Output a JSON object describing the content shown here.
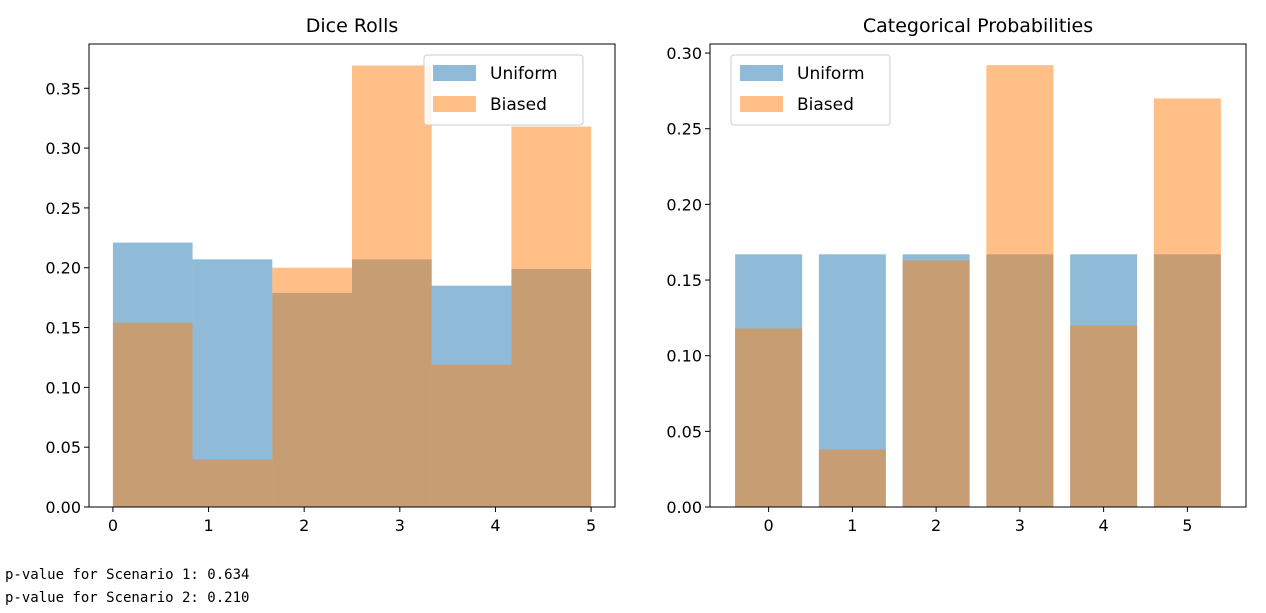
{
  "chart_data": [
    {
      "type": "bar",
      "title": "Dice Rolls",
      "xlabel": "",
      "ylabel": "",
      "xlim": [
        -0.25,
        5.25
      ],
      "ylim": [
        0,
        0.387
      ],
      "grid": false,
      "legend_position": "top-right",
      "xticks": [
        "0",
        "1",
        "2",
        "3",
        "4",
        "5"
      ],
      "yticks": [
        "0.00",
        "0.05",
        "0.10",
        "0.15",
        "0.20",
        "0.25",
        "0.30",
        "0.35"
      ],
      "bin_edges": [
        0,
        0.833,
        1.667,
        2.5,
        3.333,
        4.167,
        5
      ],
      "series": [
        {
          "name": "Uniform",
          "color": "#1f77b4",
          "alpha": 0.5,
          "values": [
            0.221,
            0.207,
            0.179,
            0.207,
            0.185,
            0.199
          ]
        },
        {
          "name": "Biased",
          "color": "#ff7f0e",
          "alpha": 0.5,
          "values": [
            0.154,
            0.04,
            0.2,
            0.369,
            0.119,
            0.318
          ]
        }
      ]
    },
    {
      "type": "bar",
      "title": "Categorical Probabilities",
      "xlabel": "",
      "ylabel": "",
      "xlim": [
        -0.7,
        5.7
      ],
      "ylim": [
        0,
        0.306
      ],
      "grid": false,
      "legend_position": "top-left",
      "categories": [
        "0",
        "1",
        "2",
        "3",
        "4",
        "5"
      ],
      "yticks": [
        "0.00",
        "0.05",
        "0.10",
        "0.15",
        "0.20",
        "0.25",
        "0.30"
      ],
      "series": [
        {
          "name": "Uniform",
          "color": "#1f77b4",
          "alpha": 0.5,
          "values": [
            0.167,
            0.167,
            0.167,
            0.167,
            0.167,
            0.167
          ]
        },
        {
          "name": "Biased",
          "color": "#ff7f0e",
          "alpha": 0.5,
          "values": [
            0.118,
            0.038,
            0.163,
            0.292,
            0.12,
            0.27
          ]
        }
      ]
    }
  ],
  "output": {
    "line1": "p-value for Scenario 1: 0.634",
    "line2": "p-value for Scenario 2: 0.210"
  }
}
